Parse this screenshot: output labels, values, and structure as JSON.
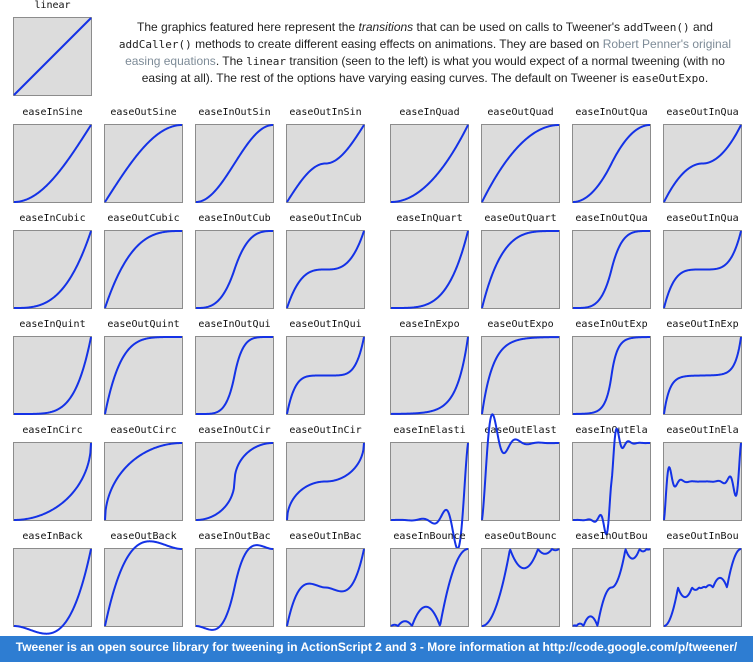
{
  "linear_label": "linear",
  "intro": {
    "p1": "The graphics featured here represent the ",
    "p2_em": "transitions",
    "p3": " that can be used on calls to Tweener's ",
    "code_addTween": "addTween()",
    "p4": " and ",
    "code_addCaller": "addCaller()",
    "p5": " methods to create different easing effects on animations. They are based on ",
    "link_text": "Robert Penner's original easing equations",
    "p6": ". The ",
    "code_linear": "linear",
    "p7": " transition (seen to the left) is what you would expect of a normal tweening (with no easing at all). The rest of the options have varying easing curves. The default on Tweener is ",
    "code_default": "easeOutExpo",
    "p8": "."
  },
  "rows": [
    [
      "easeInSine",
      "easeOutSine",
      "easeInOutSin",
      "easeOutInSin",
      "easeInQuad",
      "easeOutQuad",
      "easeInOutQua",
      "easeOutInQua"
    ],
    [
      "easeInCubic",
      "easeOutCubic",
      "easeInOutCub",
      "easeOutInCub",
      "easeInQuart",
      "easeOutQuart",
      "easeInOutQua",
      "easeOutInQua"
    ],
    [
      "easeInQuint",
      "easeOutQuint",
      "easeInOutQui",
      "easeOutInQui",
      "easeInExpo",
      "easeOutExpo",
      "easeInOutExp",
      "easeOutInExp"
    ],
    [
      "easeInCirc",
      "easeOutCirc",
      "easeInOutCir",
      "easeOutInCir",
      "easeInElasti",
      "easeOutElast",
      "easeInOutEla",
      "easeOutInEla"
    ],
    [
      "easeInBack",
      "easeOutBack",
      "easeInOutBac",
      "easeOutInBac",
      "easeInBounce",
      "easeOutBounc",
      "easeInOutBou",
      "easeOutInBou"
    ]
  ],
  "footer_text": "Tweener is an open source library for tweening in ActionScript 2 and 3 - More information at http://code.google.com/p/tweener/",
  "colors": {
    "curve": "#1432e6",
    "plot_bg": "#dcdcdc",
    "footer_bg": "#2e7dd2"
  }
}
